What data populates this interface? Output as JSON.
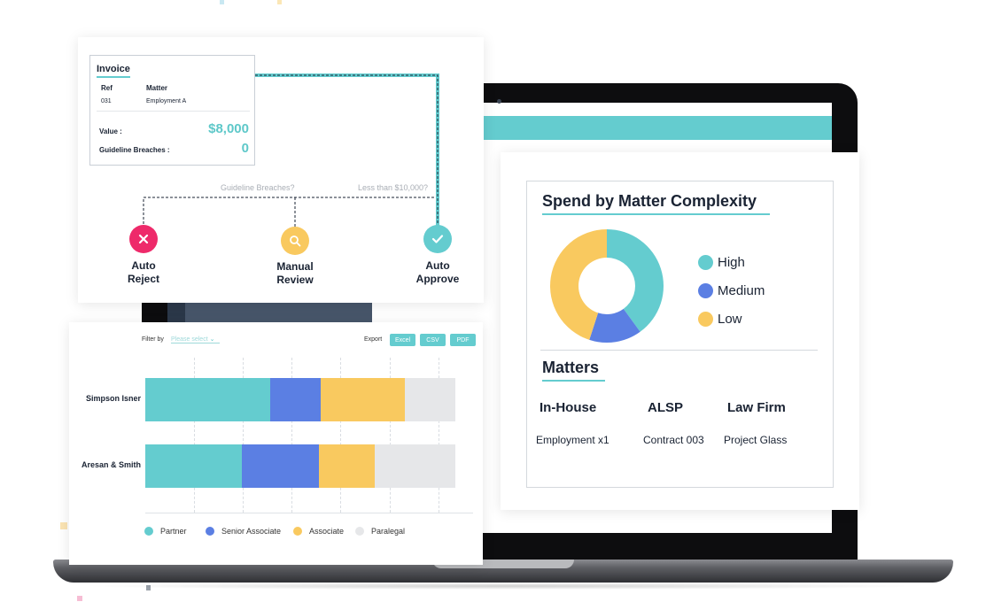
{
  "workflow": {
    "invoice": {
      "title": "Invoice",
      "ref_header": "Ref",
      "matter_header": "Matter",
      "ref_value": "031",
      "matter_value": "Employment A",
      "value_label": "Value :",
      "value_amount": "$8,000",
      "breaches_label": "Guideline Breaches :",
      "breaches_value": "0"
    },
    "questions": {
      "q1": "Guideline Breaches?",
      "q2": "Less than $10,000?"
    },
    "outcomes": {
      "reject": {
        "line1": "Auto",
        "line2": "Reject",
        "icon": "x-icon",
        "color": "#ee2a6a"
      },
      "review": {
        "line1": "Manual",
        "line2": "Review",
        "icon": "search-icon",
        "color": "#f9c95f"
      },
      "approve": {
        "line1": "Auto",
        "line2": "Approve",
        "icon": "check-icon",
        "color": "#64cccf"
      }
    }
  },
  "dashboard": {
    "title": "Spend by Matter Complexity",
    "legend": [
      {
        "label": "High",
        "color": "#64cccf"
      },
      {
        "label": "Medium",
        "color": "#5b7fe3"
      },
      {
        "label": "Low",
        "color": "#f9c95f"
      }
    ],
    "matters": {
      "title": "Matters",
      "columns": [
        {
          "header": "In-House",
          "value": "Employment x1"
        },
        {
          "header": "ALSP",
          "value": "Contract 003"
        },
        {
          "header": "Law Firm",
          "value": "Project Glass"
        }
      ]
    }
  },
  "bar_panel": {
    "filter_label": "Filter by",
    "filter_placeholder": "Please select",
    "export_label": "Export",
    "export_buttons": [
      "Excel",
      "CSV",
      "PDF"
    ]
  },
  "chart_data": [
    {
      "type": "pie",
      "donut": true,
      "labels": [
        "High",
        "Medium",
        "Low"
      ],
      "values": [
        40,
        15,
        45
      ],
      "colors": [
        "#64cccf",
        "#5b7fe3",
        "#f9c95f"
      ],
      "title": "Spend by Matter Complexity",
      "legend": "right"
    },
    {
      "type": "bar",
      "orientation": "horizontal",
      "stacked": true,
      "categories": [
        "Simpson Isner",
        "Aresan & Smith"
      ],
      "series": [
        {
          "name": "Partner",
          "values": [
            40,
            31
          ],
          "color": "#64cccf"
        },
        {
          "name": "Senior Associate",
          "values": [
            16,
            25
          ],
          "color": "#5b7fe3"
        },
        {
          "name": "Associate",
          "values": [
            27,
            18
          ],
          "color": "#f9c95f"
        },
        {
          "name": "Paralegal",
          "values": [
            16,
            26
          ],
          "color": "#e6e7e9"
        }
      ],
      "grid": true,
      "legend": "bottom"
    }
  ]
}
